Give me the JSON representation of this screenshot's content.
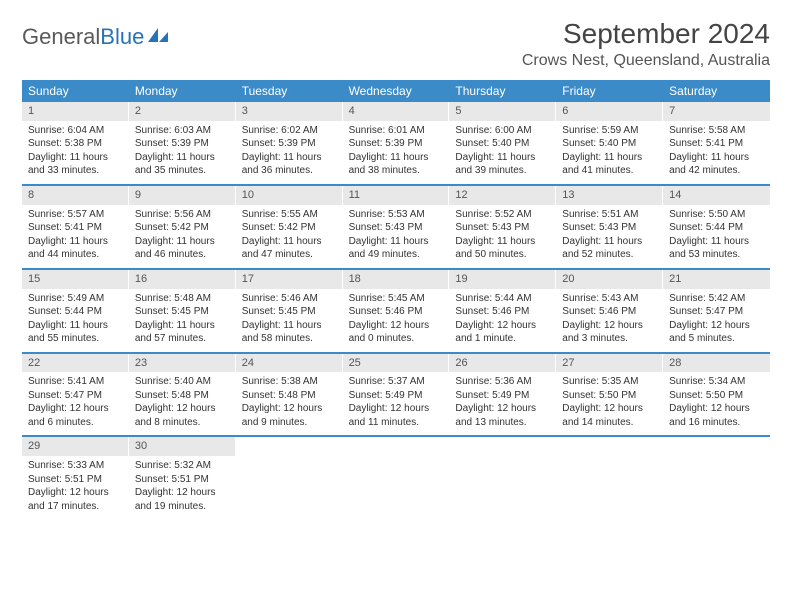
{
  "logo": {
    "text1": "General",
    "text2": "Blue"
  },
  "title": "September 2024",
  "location": "Crows Nest, Queensland, Australia",
  "colors": {
    "header_bg": "#3b8bc9",
    "header_text": "#ffffff",
    "daynum_bg": "#e8e8e8",
    "border": "#3b8bc9",
    "body_text": "#333333"
  },
  "day_names": [
    "Sunday",
    "Monday",
    "Tuesday",
    "Wednesday",
    "Thursday",
    "Friday",
    "Saturday"
  ],
  "weeks": [
    [
      {
        "n": "1",
        "sr": "Sunrise: 6:04 AM",
        "ss": "Sunset: 5:38 PM",
        "d1": "Daylight: 11 hours",
        "d2": "and 33 minutes."
      },
      {
        "n": "2",
        "sr": "Sunrise: 6:03 AM",
        "ss": "Sunset: 5:39 PM",
        "d1": "Daylight: 11 hours",
        "d2": "and 35 minutes."
      },
      {
        "n": "3",
        "sr": "Sunrise: 6:02 AM",
        "ss": "Sunset: 5:39 PM",
        "d1": "Daylight: 11 hours",
        "d2": "and 36 minutes."
      },
      {
        "n": "4",
        "sr": "Sunrise: 6:01 AM",
        "ss": "Sunset: 5:39 PM",
        "d1": "Daylight: 11 hours",
        "d2": "and 38 minutes."
      },
      {
        "n": "5",
        "sr": "Sunrise: 6:00 AM",
        "ss": "Sunset: 5:40 PM",
        "d1": "Daylight: 11 hours",
        "d2": "and 39 minutes."
      },
      {
        "n": "6",
        "sr": "Sunrise: 5:59 AM",
        "ss": "Sunset: 5:40 PM",
        "d1": "Daylight: 11 hours",
        "d2": "and 41 minutes."
      },
      {
        "n": "7",
        "sr": "Sunrise: 5:58 AM",
        "ss": "Sunset: 5:41 PM",
        "d1": "Daylight: 11 hours",
        "d2": "and 42 minutes."
      }
    ],
    [
      {
        "n": "8",
        "sr": "Sunrise: 5:57 AM",
        "ss": "Sunset: 5:41 PM",
        "d1": "Daylight: 11 hours",
        "d2": "and 44 minutes."
      },
      {
        "n": "9",
        "sr": "Sunrise: 5:56 AM",
        "ss": "Sunset: 5:42 PM",
        "d1": "Daylight: 11 hours",
        "d2": "and 46 minutes."
      },
      {
        "n": "10",
        "sr": "Sunrise: 5:55 AM",
        "ss": "Sunset: 5:42 PM",
        "d1": "Daylight: 11 hours",
        "d2": "and 47 minutes."
      },
      {
        "n": "11",
        "sr": "Sunrise: 5:53 AM",
        "ss": "Sunset: 5:43 PM",
        "d1": "Daylight: 11 hours",
        "d2": "and 49 minutes."
      },
      {
        "n": "12",
        "sr": "Sunrise: 5:52 AM",
        "ss": "Sunset: 5:43 PM",
        "d1": "Daylight: 11 hours",
        "d2": "and 50 minutes."
      },
      {
        "n": "13",
        "sr": "Sunrise: 5:51 AM",
        "ss": "Sunset: 5:43 PM",
        "d1": "Daylight: 11 hours",
        "d2": "and 52 minutes."
      },
      {
        "n": "14",
        "sr": "Sunrise: 5:50 AM",
        "ss": "Sunset: 5:44 PM",
        "d1": "Daylight: 11 hours",
        "d2": "and 53 minutes."
      }
    ],
    [
      {
        "n": "15",
        "sr": "Sunrise: 5:49 AM",
        "ss": "Sunset: 5:44 PM",
        "d1": "Daylight: 11 hours",
        "d2": "and 55 minutes."
      },
      {
        "n": "16",
        "sr": "Sunrise: 5:48 AM",
        "ss": "Sunset: 5:45 PM",
        "d1": "Daylight: 11 hours",
        "d2": "and 57 minutes."
      },
      {
        "n": "17",
        "sr": "Sunrise: 5:46 AM",
        "ss": "Sunset: 5:45 PM",
        "d1": "Daylight: 11 hours",
        "d2": "and 58 minutes."
      },
      {
        "n": "18",
        "sr": "Sunrise: 5:45 AM",
        "ss": "Sunset: 5:46 PM",
        "d1": "Daylight: 12 hours",
        "d2": "and 0 minutes."
      },
      {
        "n": "19",
        "sr": "Sunrise: 5:44 AM",
        "ss": "Sunset: 5:46 PM",
        "d1": "Daylight: 12 hours",
        "d2": "and 1 minute."
      },
      {
        "n": "20",
        "sr": "Sunrise: 5:43 AM",
        "ss": "Sunset: 5:46 PM",
        "d1": "Daylight: 12 hours",
        "d2": "and 3 minutes."
      },
      {
        "n": "21",
        "sr": "Sunrise: 5:42 AM",
        "ss": "Sunset: 5:47 PM",
        "d1": "Daylight: 12 hours",
        "d2": "and 5 minutes."
      }
    ],
    [
      {
        "n": "22",
        "sr": "Sunrise: 5:41 AM",
        "ss": "Sunset: 5:47 PM",
        "d1": "Daylight: 12 hours",
        "d2": "and 6 minutes."
      },
      {
        "n": "23",
        "sr": "Sunrise: 5:40 AM",
        "ss": "Sunset: 5:48 PM",
        "d1": "Daylight: 12 hours",
        "d2": "and 8 minutes."
      },
      {
        "n": "24",
        "sr": "Sunrise: 5:38 AM",
        "ss": "Sunset: 5:48 PM",
        "d1": "Daylight: 12 hours",
        "d2": "and 9 minutes."
      },
      {
        "n": "25",
        "sr": "Sunrise: 5:37 AM",
        "ss": "Sunset: 5:49 PM",
        "d1": "Daylight: 12 hours",
        "d2": "and 11 minutes."
      },
      {
        "n": "26",
        "sr": "Sunrise: 5:36 AM",
        "ss": "Sunset: 5:49 PM",
        "d1": "Daylight: 12 hours",
        "d2": "and 13 minutes."
      },
      {
        "n": "27",
        "sr": "Sunrise: 5:35 AM",
        "ss": "Sunset: 5:50 PM",
        "d1": "Daylight: 12 hours",
        "d2": "and 14 minutes."
      },
      {
        "n": "28",
        "sr": "Sunrise: 5:34 AM",
        "ss": "Sunset: 5:50 PM",
        "d1": "Daylight: 12 hours",
        "d2": "and 16 minutes."
      }
    ],
    [
      {
        "n": "29",
        "sr": "Sunrise: 5:33 AM",
        "ss": "Sunset: 5:51 PM",
        "d1": "Daylight: 12 hours",
        "d2": "and 17 minutes."
      },
      {
        "n": "30",
        "sr": "Sunrise: 5:32 AM",
        "ss": "Sunset: 5:51 PM",
        "d1": "Daylight: 12 hours",
        "d2": "and 19 minutes."
      },
      {
        "empty": true
      },
      {
        "empty": true
      },
      {
        "empty": true
      },
      {
        "empty": true
      },
      {
        "empty": true
      }
    ]
  ]
}
